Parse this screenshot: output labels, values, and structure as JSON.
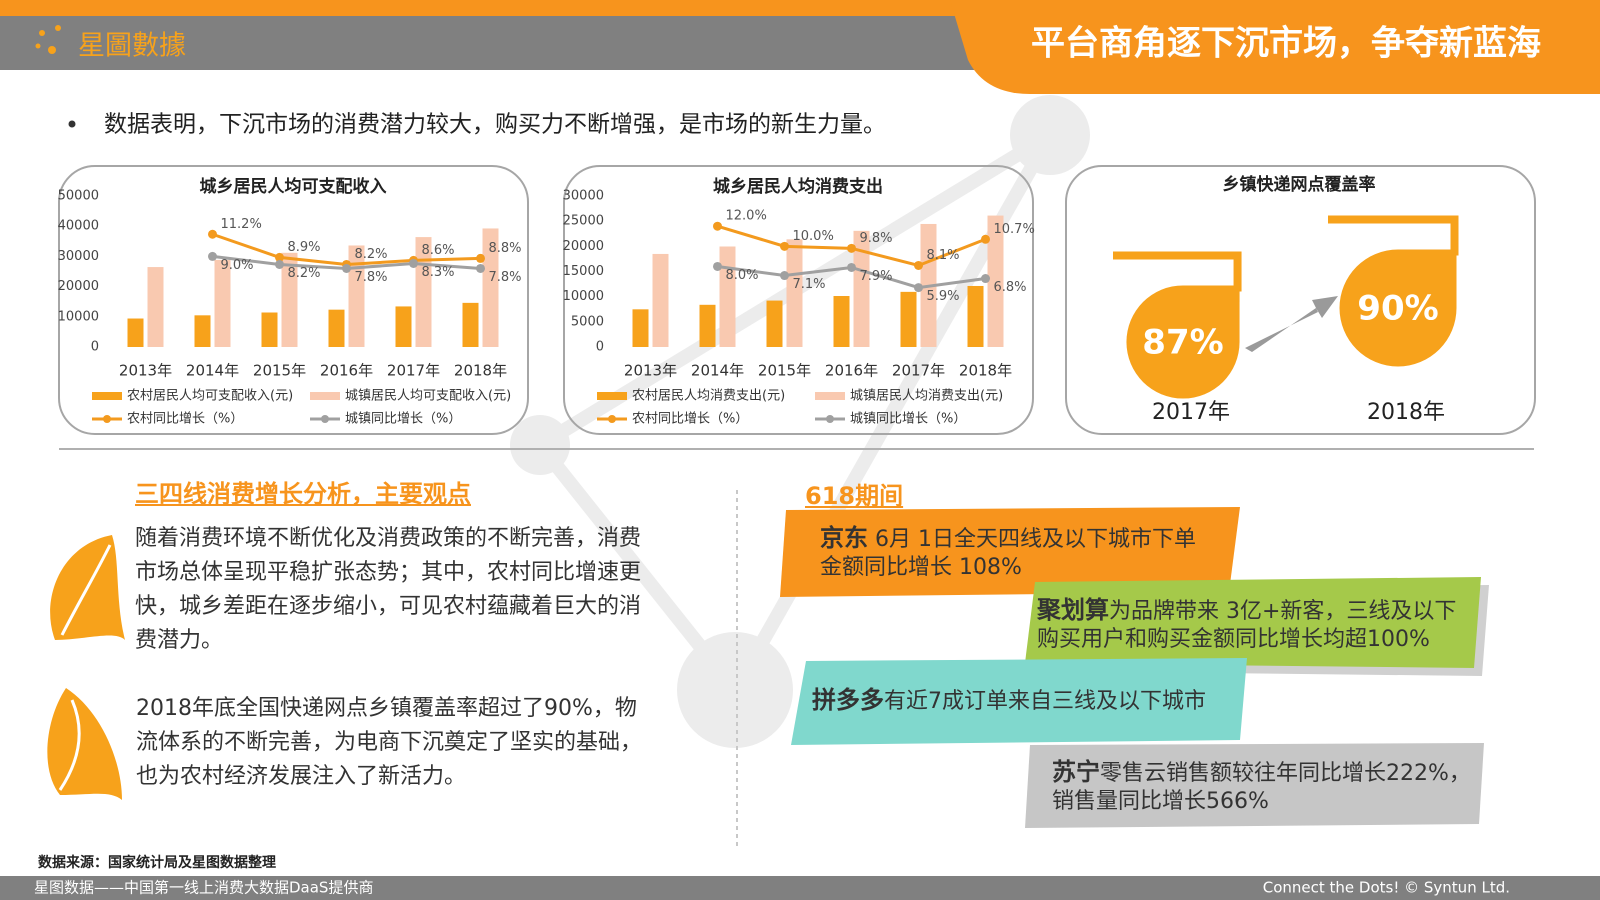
{
  "header": {
    "brand": "星圖數據",
    "title": "平台商角逐下沉市场，争夺新蓝海"
  },
  "bullet": "数据表明，下沉市场的消费潜力较大，购买力不断增强，是市场的新生力量。",
  "chart_data": [
    {
      "type": "combo",
      "title": "城乡居民人均可支配收入",
      "categories": [
        "2013年",
        "2014年",
        "2015年",
        "2016年",
        "2017年",
        "2018年"
      ],
      "ylim": [
        0,
        50000
      ],
      "yticks": [
        0,
        10000,
        20000,
        30000,
        40000,
        50000
      ],
      "y2lim": [
        0,
        15
      ],
      "series": [
        {
          "name": "农村居民人均可支配收入(元)",
          "type": "bar",
          "color": "#f7a21b",
          "values": [
            9430,
            10489,
            11422,
            12363,
            13432,
            14617
          ]
        },
        {
          "name": "城镇居民人均可支配收入(元)",
          "type": "bar",
          "color": "#f9c9b0",
          "values": [
            26467,
            28844,
            31195,
            33616,
            36396,
            39251
          ]
        },
        {
          "name": "农村同比增长（%）",
          "type": "line",
          "axis": "y2",
          "color": "#f39a1e",
          "values": [
            null,
            11.2,
            8.9,
            8.2,
            8.6,
            8.8
          ],
          "value_labels": [
            null,
            "11.2%",
            "8.9%",
            "8.2%",
            "8.6%",
            "8.8%"
          ]
        },
        {
          "name": "城镇同比增长（%）",
          "type": "line",
          "axis": "y2",
          "color": "#a0a0a0",
          "values": [
            null,
            9.0,
            8.2,
            7.8,
            8.3,
            7.8
          ],
          "value_labels": [
            null,
            "9.0%",
            "8.2%",
            "7.8%",
            "8.3%",
            "7.8%"
          ]
        }
      ]
    },
    {
      "type": "combo",
      "title": "城乡居民人均消费支出",
      "categories": [
        "2013年",
        "2014年",
        "2015年",
        "2016年",
        "2017年",
        "2018年"
      ],
      "ylim": [
        0,
        30000
      ],
      "yticks": [
        0,
        5000,
        10000,
        15000,
        20000,
        25000,
        30000
      ],
      "y2lim": [
        0,
        15
      ],
      "series": [
        {
          "name": "农村居民人均消费支出(元)",
          "type": "bar",
          "color": "#f7a21b",
          "values": [
            7485,
            8383,
            9223,
            10130,
            10955,
            12124
          ]
        },
        {
          "name": "城镇居民人均消费支出(元)",
          "type": "bar",
          "color": "#f9c9b0",
          "values": [
            18488,
            19968,
            21392,
            23079,
            24445,
            26112
          ]
        },
        {
          "name": "农村同比增长（%）",
          "type": "line",
          "axis": "y2",
          "color": "#f39a1e",
          "values": [
            null,
            12.0,
            10.0,
            9.8,
            8.1,
            10.7
          ],
          "value_labels": [
            null,
            "12.0%",
            "10.0%",
            "9.8%",
            "8.1%",
            "10.7%"
          ]
        },
        {
          "name": "城镇同比增长（%）",
          "type": "line",
          "axis": "y2",
          "color": "#a0a0a0",
          "values": [
            null,
            8.0,
            7.1,
            7.9,
            5.9,
            6.8
          ],
          "value_labels": [
            null,
            "8.0%",
            "7.1%",
            "7.9%",
            "5.9%",
            "6.8%"
          ]
        }
      ]
    },
    {
      "type": "drop",
      "title": "乡镇快递网点覆盖率",
      "categories": [
        "2017年",
        "2018年"
      ],
      "values": [
        87,
        90
      ],
      "value_labels": [
        "87%",
        "90%"
      ],
      "color": "#f7a21b"
    }
  ],
  "analysis": {
    "title": "三四线消费增长分析，主要观点",
    "points": [
      "随着消费环境不断优化及消费政策的不断完善，消费市场总体呈现平稳扩张态势；其中，农村同比增速更快，城乡差距在逐步缩小，可见农村蕴藏着巨大的消费潜力。",
      "2018年底全国快递网点乡镇覆盖率超过了90%，物流体系的不断完善，为电商下沉奠定了坚实的基础，也为农村经济发展注入了新活力。"
    ]
  },
  "event": {
    "title": "618期间",
    "items": [
      {
        "name": "京东",
        "text": " 6月 1日全天四线及以下城市下单金额同比增长 108%"
      },
      {
        "name": "聚划算",
        "text": "为品牌带来 3亿+新客，三线及以下购买用户和购买金额同比增长均超100%"
      },
      {
        "name": "拼多多",
        "text": "有近7成订单来自三线及以下城市"
      },
      {
        "name": "苏宁",
        "text": "零售云销售额较往年同比增长222%，销售量同比增长566%"
      }
    ]
  },
  "source": "数据来源：国家统计局及星图数据整理",
  "footer": {
    "left": "星图数据——中国第一线上消费大数据DaaS提供商",
    "right": "Connect the Dots! © Syntun Ltd."
  }
}
